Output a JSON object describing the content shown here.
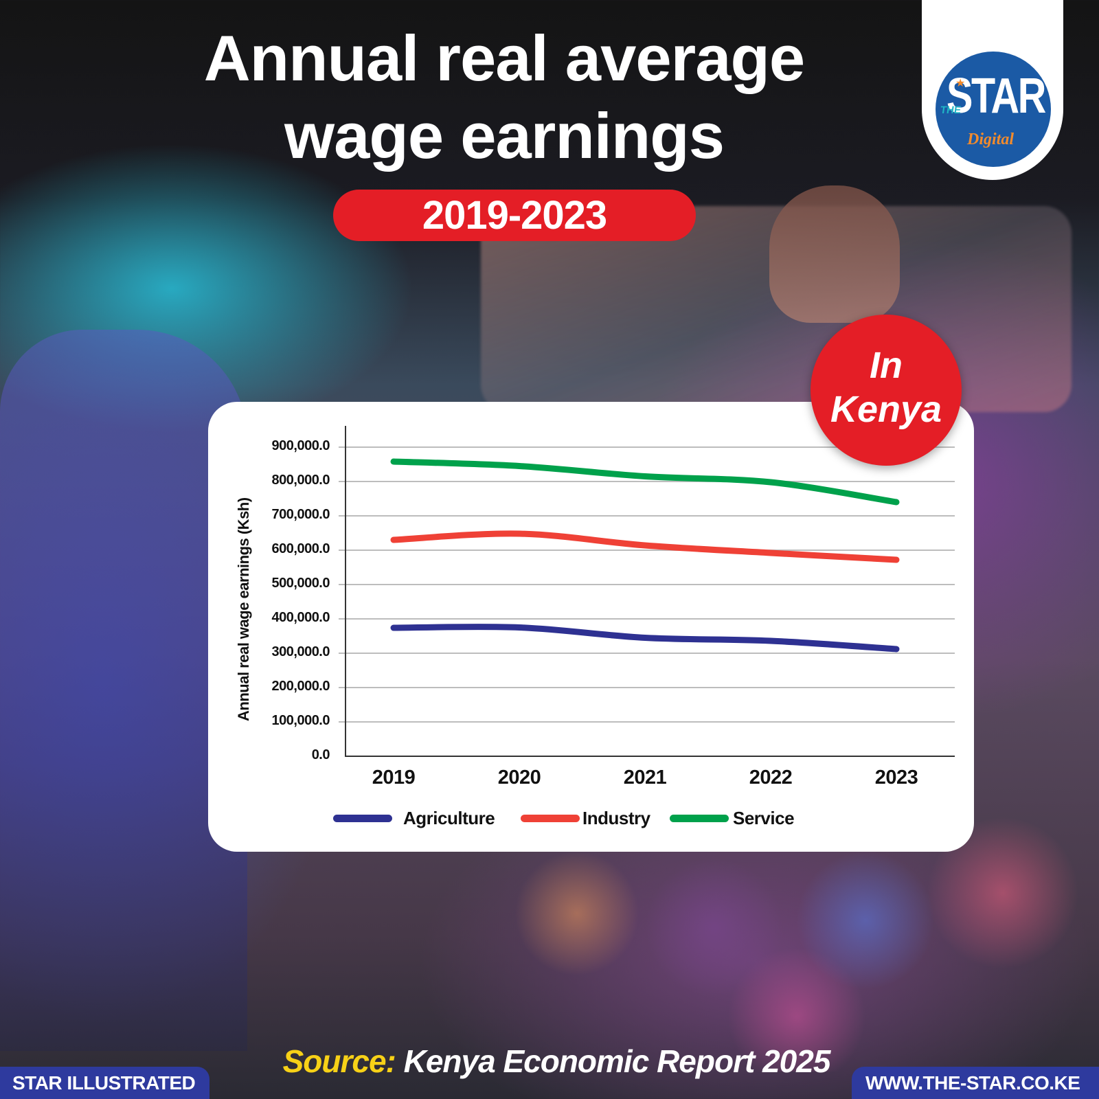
{
  "header": {
    "title_line1": "Annual real average",
    "title_line2": "wage earnings",
    "period": "2019-2023"
  },
  "logo": {
    "the": "THE",
    "star": "STAR",
    "digital": "Digital",
    "star_icon": "★"
  },
  "badge": {
    "line1": "In",
    "line2": "Kenya"
  },
  "colors": {
    "agriculture": "#2e3192",
    "industry": "#ef4136",
    "service": "#00a14b",
    "accent_red": "#e41e26",
    "footer_blue": "#2e3a9e",
    "source_yellow": "#f7d117"
  },
  "chart_data": {
    "type": "line",
    "title": "Annual real average wage earnings 2019-2023",
    "xlabel": "",
    "ylabel": "Annual real wage earnings (Ksh)",
    "categories": [
      "2019",
      "2020",
      "2021",
      "2022",
      "2023"
    ],
    "series": [
      {
        "name": "Agriculture",
        "color": "#2e3192",
        "values": [
          374000,
          375000,
          345000,
          336000,
          312000
        ]
      },
      {
        "name": "Industry",
        "color": "#ef4136",
        "values": [
          630000,
          648000,
          614000,
          592000,
          572000
        ]
      },
      {
        "name": "Service",
        "color": "#00a14b",
        "values": [
          858000,
          845000,
          815000,
          798000,
          740000
        ]
      }
    ],
    "yticks": [
      "0.0",
      "100,000.0",
      "200,000.0",
      "300,000.0",
      "400,000.0",
      "500,000.0",
      "600,000.0",
      "700,000.0",
      "800,000.0",
      "900,000.0"
    ],
    "ylim": [
      0,
      900000
    ],
    "grid": true,
    "legend_position": "bottom"
  },
  "footer": {
    "source_key": "Source:",
    "source_value": " Kenya Economic Report 2025",
    "left_label": "STAR ILLUSTRATED",
    "right_label": "WWW.THE-STAR.CO.KE"
  }
}
